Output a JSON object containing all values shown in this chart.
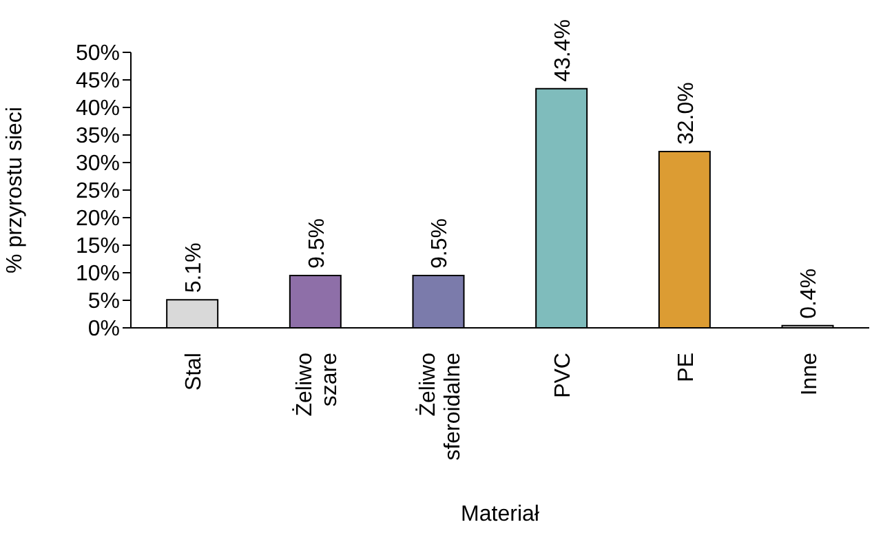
{
  "chart_data": {
    "type": "bar",
    "xlabel": "Materiał",
    "ylabel": "% przyrostu sieci",
    "categories": [
      "Stal",
      "Żeliwo szare",
      "Żeliwo sferoidalne",
      "PVC",
      "PE",
      "Inne"
    ],
    "values": [
      5.1,
      9.5,
      9.5,
      43.4,
      32.0,
      0.4
    ],
    "value_labels": [
      "5.1%",
      "9.5%",
      "9.5%",
      "43.4%",
      "32.0%",
      "0.4%"
    ],
    "colors": [
      "#d9d9d9",
      "#8e6fa8",
      "#7b7bab",
      "#7fbcbc",
      "#dc9c33",
      "#d9d9d9"
    ],
    "ylim": [
      0,
      50
    ],
    "yticks": [
      {
        "value": 0,
        "label": "0%"
      },
      {
        "value": 5,
        "label": "5%"
      },
      {
        "value": 10,
        "label": "10%"
      },
      {
        "value": 15,
        "label": "15%"
      },
      {
        "value": 20,
        "label": "20%"
      },
      {
        "value": 25,
        "label": "25%"
      },
      {
        "value": 30,
        "label": "30%"
      },
      {
        "value": 35,
        "label": "35%"
      },
      {
        "value": 40,
        "label": "40%"
      },
      {
        "value": 45,
        "label": "45%"
      },
      {
        "value": 50,
        "label": "50%"
      }
    ],
    "grid": false,
    "legend": false
  }
}
